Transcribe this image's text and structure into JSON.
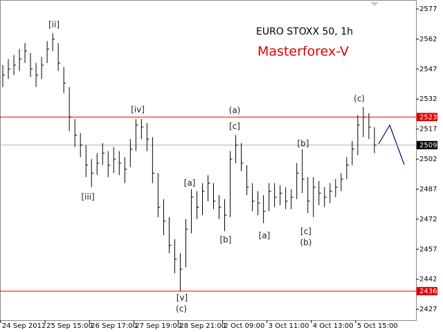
{
  "chart_data": {
    "type": "ohlc",
    "title": "EURO STOXX 50, 1h",
    "watermark": "Masterforex-V",
    "color": "#000000",
    "xlim": [
      0,
      75
    ],
    "xticks": [
      {
        "value": 0,
        "label": "24 Sep 2012"
      },
      {
        "value": 8,
        "label": "25 Sep 15:00"
      },
      {
        "value": 16,
        "label": "26 Sep 17:00"
      },
      {
        "value": 24,
        "label": "27 Sep 19:00"
      },
      {
        "value": 32,
        "label": "28 Sep 21:00"
      },
      {
        "value": 40,
        "label": "2 Oct 09:00"
      },
      {
        "value": 48,
        "label": "3 Oct 11:00"
      },
      {
        "value": 56,
        "label": "4 Oct 13:00"
      },
      {
        "value": 64,
        "label": "5 Oct 15:00"
      }
    ],
    "ylim": [
      2421.5,
      2581.5
    ],
    "yticks": [
      2427,
      2442,
      2457,
      2472,
      2487,
      2502,
      2517,
      2532,
      2547,
      2562,
      2577
    ],
    "high": [
      2549,
      2552,
      2554,
      2557,
      2560,
      2555,
      2550,
      2553,
      2561,
      2565,
      2560,
      2548,
      2538,
      2522,
      2515,
      2509,
      2502,
      2505,
      2510,
      2506,
      2508,
      2506,
      2503,
      2512,
      2522,
      2522,
      2520,
      2513,
      2495,
      2482,
      2473,
      2462,
      2455,
      2472,
      2487,
      2486,
      2490,
      2494,
      2490,
      2484,
      2482,
      2506,
      2514,
      2510,
      2499,
      2490,
      2486,
      2484,
      2490,
      2490,
      2489,
      2488,
      2487,
      2500,
      2507,
      2493,
      2493,
      2491,
      2488,
      2490,
      2492,
      2495,
      2503,
      2511,
      2524,
      2528,
      2525,
      2518
    ],
    "low": [
      2538,
      2542,
      2544,
      2546,
      2550,
      2543,
      2538,
      2542,
      2550,
      2556,
      2546,
      2535,
      2516,
      2508,
      2503,
      2493,
      2488,
      2494,
      2499,
      2493,
      2495,
      2494,
      2490,
      2498,
      2506,
      2512,
      2506,
      2490,
      2473,
      2464,
      2455,
      2445,
      2436,
      2448,
      2465,
      2472,
      2474,
      2481,
      2477,
      2472,
      2466,
      2473,
      2500,
      2496,
      2484,
      2476,
      2474,
      2470,
      2476,
      2478,
      2479,
      2477,
      2477,
      2482,
      2485,
      2475,
      2473,
      2479,
      2478,
      2480,
      2483,
      2486,
      2492,
      2499,
      2504,
      2513,
      2512,
      2505
    ],
    "close": [
      2544,
      2547,
      2549,
      2552,
      2556,
      2547,
      2544,
      2549,
      2557,
      2562,
      2550,
      2540,
      2523,
      2514,
      2509,
      2499,
      2495,
      2500,
      2505,
      2499,
      2502,
      2500,
      2497,
      2507,
      2519,
      2518,
      2512,
      2495,
      2478,
      2471,
      2459,
      2452,
      2447,
      2467,
      2483,
      2478,
      2486,
      2490,
      2481,
      2478,
      2474,
      2502,
      2509,
      2500,
      2488,
      2481,
      2480,
      2476,
      2486,
      2483,
      2485,
      2481,
      2483,
      2495,
      2492,
      2481,
      2488,
      2485,
      2483,
      2486,
      2488,
      2492,
      2499,
      2507,
      2519,
      2523,
      2518,
      2509
    ],
    "levels": [
      {
        "value": 2523,
        "color": "#e00000"
      },
      {
        "value": 2436,
        "color": "#e00000"
      },
      {
        "value": 2509,
        "color": "#b0b0b0"
      }
    ],
    "annotations": [
      "[ii]",
      "[iii]",
      "[iv]",
      "[v]",
      "(c)",
      "[a]",
      "[b]",
      "(a)",
      "[c]",
      "[a]",
      "[b]",
      "[c]",
      "(b)",
      "(c)"
    ]
  }
}
